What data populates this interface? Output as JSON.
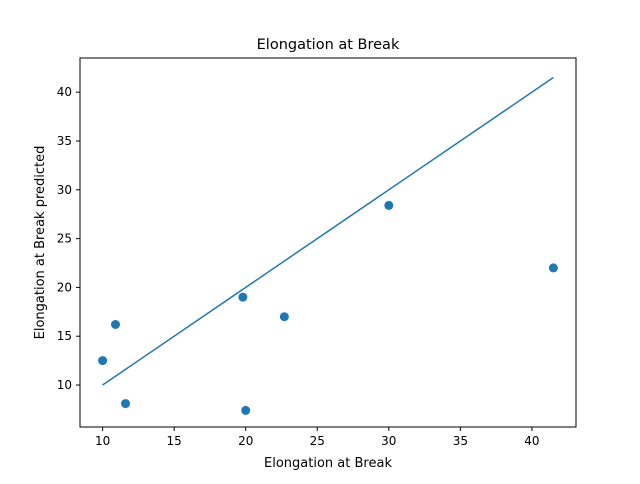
{
  "chart_data": {
    "type": "scatter",
    "title": "Elongation at Break",
    "xlabel": "Elongation at Break",
    "ylabel": "Elongation at Break predicted",
    "xlim": [
      8.42,
      43.08
    ],
    "ylim": [
      5.7,
      43.5
    ],
    "xticks": [
      10,
      15,
      20,
      25,
      30,
      35,
      40
    ],
    "yticks": [
      10,
      15,
      20,
      25,
      30,
      35,
      40
    ],
    "grid": false,
    "series": [
      {
        "type": "scatter",
        "color": "#1f77b4",
        "points": [
          {
            "x": 10.0,
            "y": 12.5
          },
          {
            "x": 10.9,
            "y": 16.2
          },
          {
            "x": 11.6,
            "y": 8.1
          },
          {
            "x": 19.8,
            "y": 19.0
          },
          {
            "x": 20.0,
            "y": 7.4
          },
          {
            "x": 22.7,
            "y": 17.0
          },
          {
            "x": 30.0,
            "y": 28.4
          },
          {
            "x": 41.5,
            "y": 22.0
          }
        ]
      },
      {
        "type": "line",
        "color": "#1f77b4",
        "x": [
          10.0,
          41.5
        ],
        "y": [
          10.0,
          41.5
        ]
      }
    ]
  }
}
